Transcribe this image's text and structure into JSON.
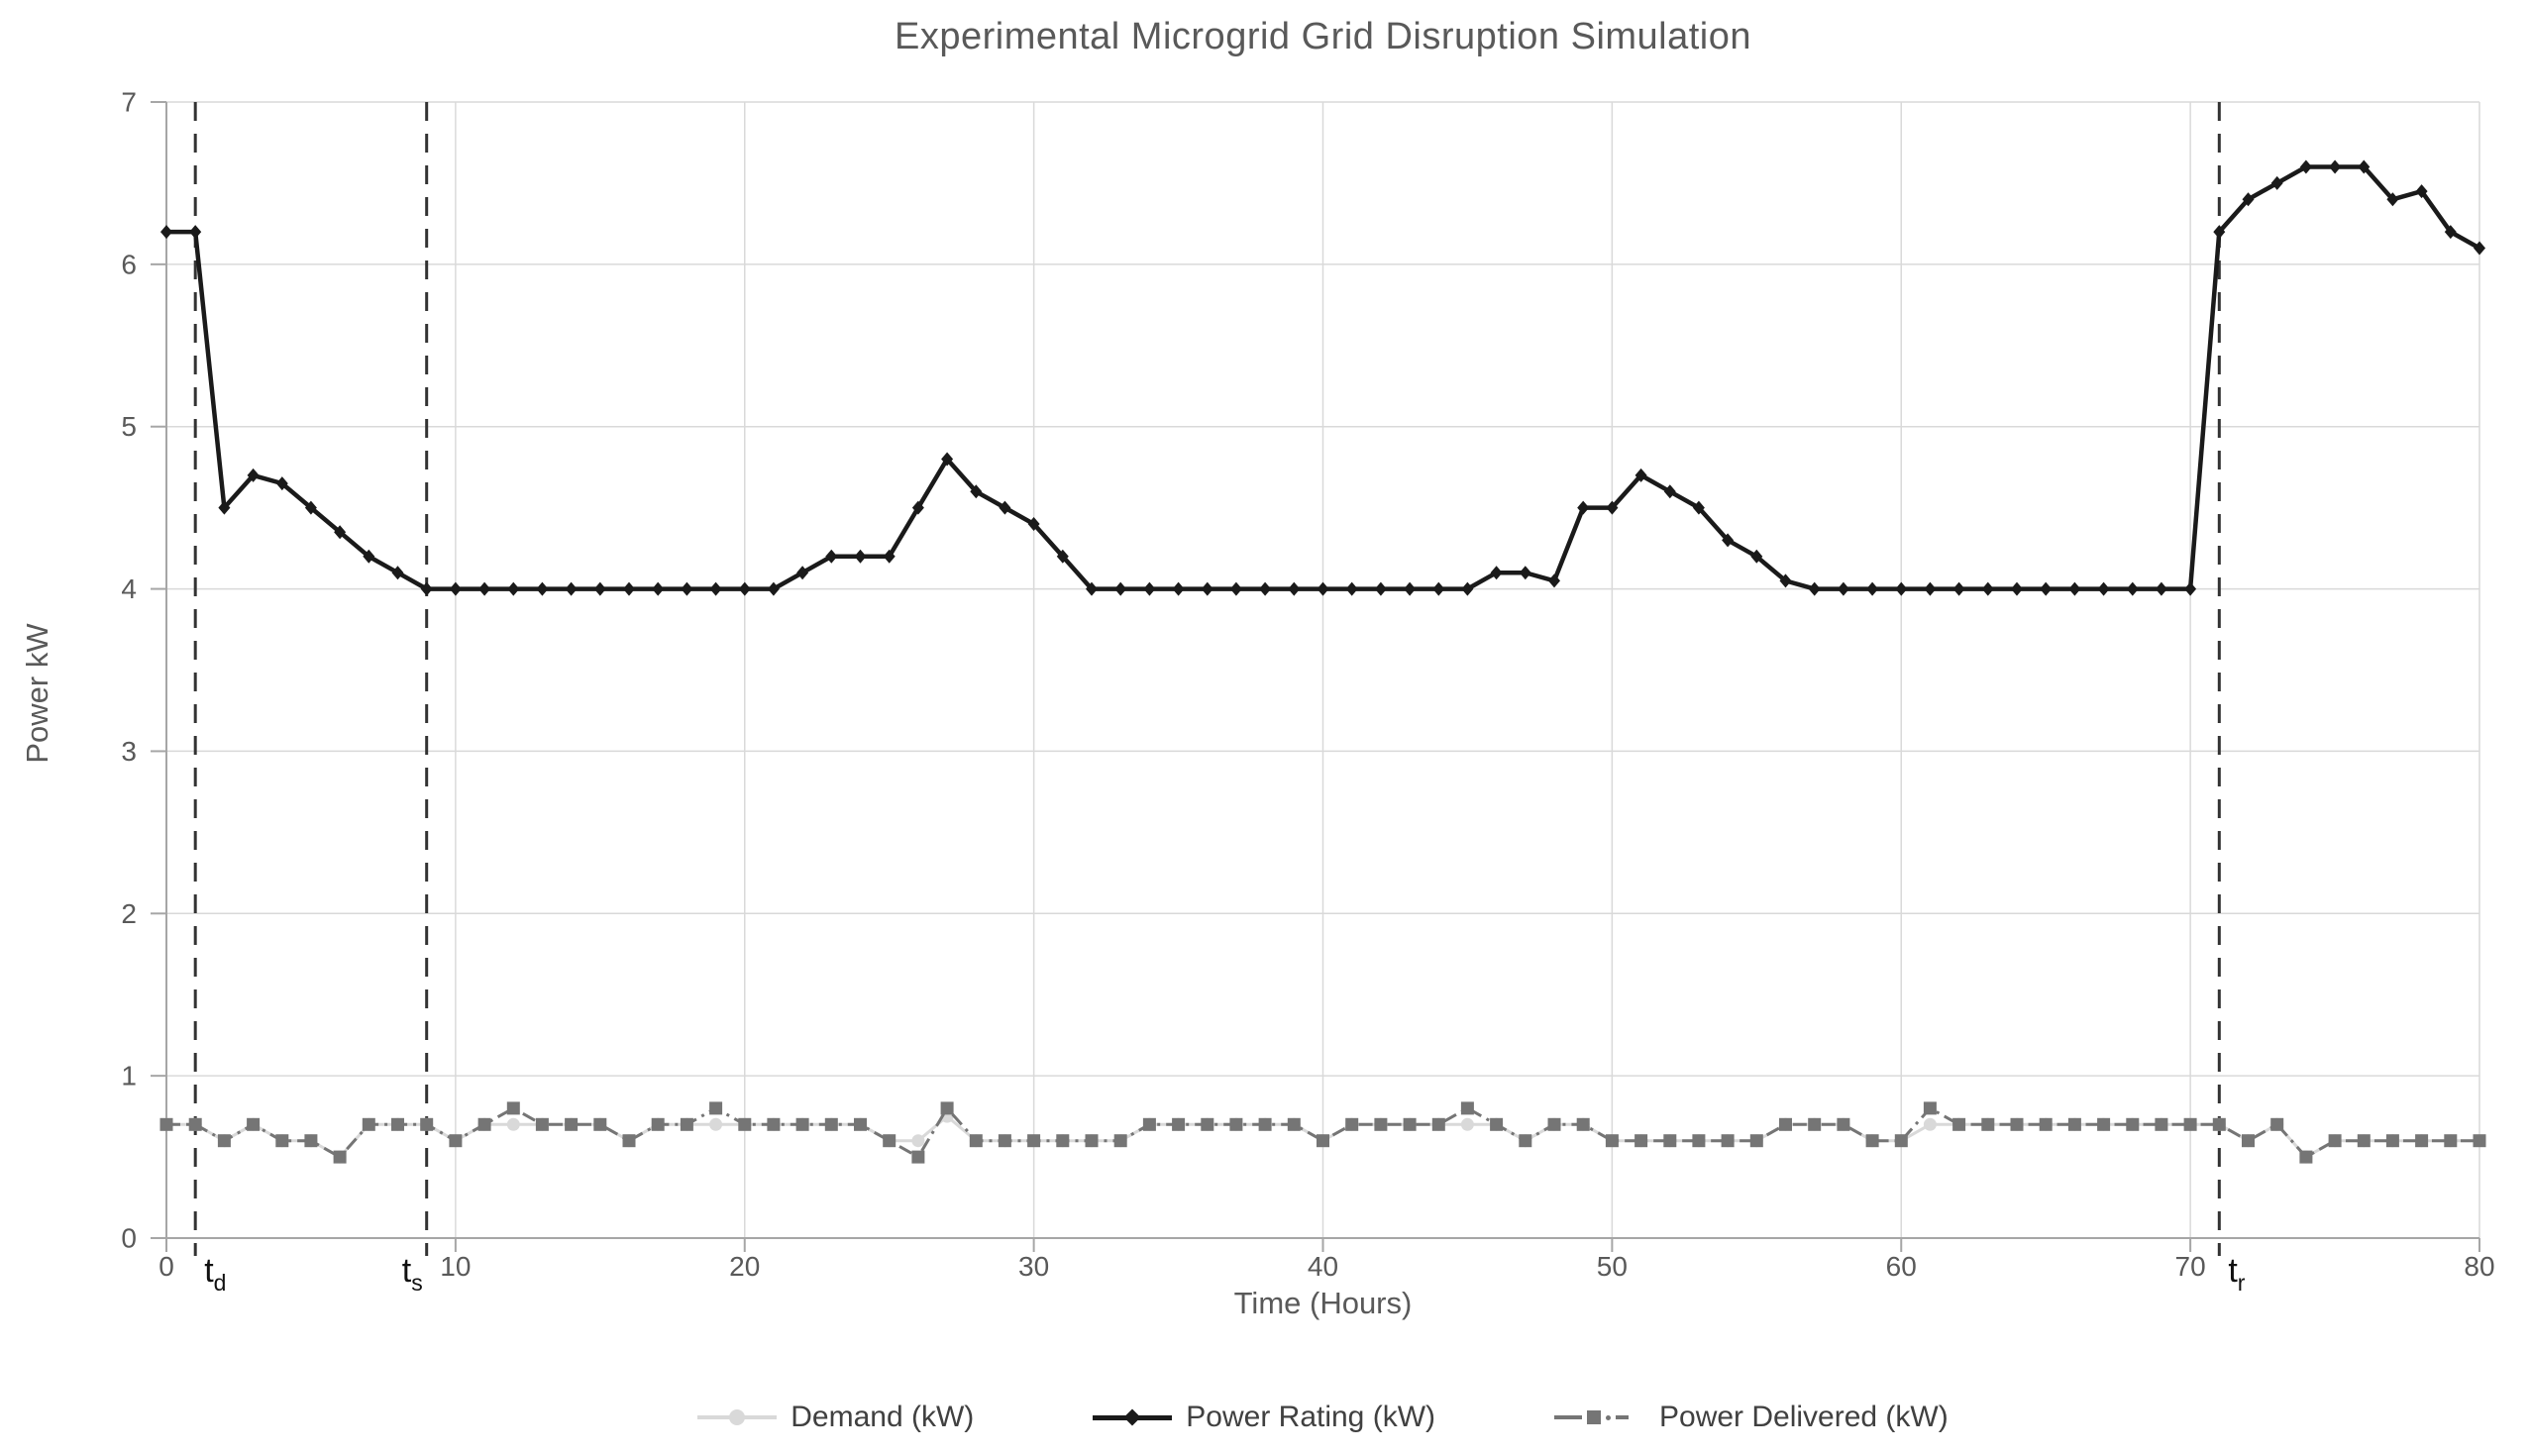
{
  "colors": {
    "grid": "#d9d9d9",
    "axis_line": "#a6a6a6",
    "tick_text": "#595959",
    "event_line": "#333333",
    "demand": "#d9d9d9",
    "rating": "#1a1a1a",
    "delivered": "#757575",
    "title_text": "#595959"
  },
  "chart_data": {
    "type": "line",
    "title": "Experimental Microgrid Grid Disruption Simulation",
    "xlabel": "Time (Hours)",
    "ylabel": "Power kW",
    "xlim": [
      0,
      80
    ],
    "ylim": [
      0,
      7
    ],
    "x_ticks": [
      0,
      10,
      20,
      30,
      40,
      50,
      60,
      70,
      80
    ],
    "y_ticks": [
      0,
      1,
      2,
      3,
      4,
      5,
      6,
      7
    ],
    "grid": true,
    "legend_position": "bottom",
    "event_lines": [
      {
        "label": "t",
        "subscript": "d",
        "x": 1
      },
      {
        "label": "t",
        "subscript": "s",
        "x": 9
      },
      {
        "label": "t",
        "subscript": "r",
        "x": 71
      }
    ],
    "x": [
      0,
      1,
      2,
      3,
      4,
      5,
      6,
      7,
      8,
      9,
      10,
      11,
      12,
      13,
      14,
      15,
      16,
      17,
      18,
      19,
      20,
      21,
      22,
      23,
      24,
      25,
      26,
      27,
      28,
      29,
      30,
      31,
      32,
      33,
      34,
      35,
      36,
      37,
      38,
      39,
      40,
      41,
      42,
      43,
      44,
      45,
      46,
      47,
      48,
      49,
      50,
      51,
      52,
      53,
      54,
      55,
      56,
      57,
      58,
      59,
      60,
      61,
      62,
      63,
      64,
      65,
      66,
      67,
      68,
      69,
      70,
      71,
      72,
      73,
      74,
      75,
      76,
      77,
      78,
      79,
      80
    ],
    "series": [
      {
        "name": "Demand (kW)",
        "marker": "circle",
        "color": "#d9d9d9",
        "line_style": "solid",
        "values": [
          0.7,
          0.7,
          0.6,
          0.7,
          0.6,
          0.6,
          0.5,
          0.7,
          0.7,
          0.7,
          0.6,
          0.7,
          0.7,
          0.7,
          0.7,
          0.7,
          0.6,
          0.7,
          0.7,
          0.7,
          0.7,
          0.7,
          0.7,
          0.7,
          0.7,
          0.6,
          0.6,
          0.75,
          0.6,
          0.6,
          0.6,
          0.6,
          0.6,
          0.6,
          0.7,
          0.7,
          0.7,
          0.7,
          0.7,
          0.7,
          0.6,
          0.7,
          0.7,
          0.7,
          0.7,
          0.7,
          0.7,
          0.6,
          0.7,
          0.7,
          0.6,
          0.6,
          0.6,
          0.6,
          0.6,
          0.6,
          0.7,
          0.7,
          0.7,
          0.6,
          0.6,
          0.7,
          0.7,
          0.7,
          0.7,
          0.7,
          0.7,
          0.7,
          0.7,
          0.7,
          0.7,
          0.7,
          0.6,
          0.7,
          0.5,
          0.6,
          0.6,
          0.6,
          0.6,
          0.6,
          0.6
        ]
      },
      {
        "name": "Power Rating (kW)",
        "marker": "diamond",
        "color": "#1a1a1a",
        "line_style": "solid",
        "values": [
          6.2,
          6.2,
          4.5,
          4.7,
          4.65,
          4.5,
          4.35,
          4.2,
          4.1,
          4.0,
          4.0,
          4.0,
          4.0,
          4.0,
          4.0,
          4.0,
          4.0,
          4.0,
          4.0,
          4.0,
          4.0,
          4.0,
          4.1,
          4.2,
          4.2,
          4.2,
          4.5,
          4.8,
          4.6,
          4.5,
          4.4,
          4.2,
          4.0,
          4.0,
          4.0,
          4.0,
          4.0,
          4.0,
          4.0,
          4.0,
          4.0,
          4.0,
          4.0,
          4.0,
          4.0,
          4.0,
          4.1,
          4.1,
          4.05,
          4.5,
          4.5,
          4.7,
          4.6,
          4.5,
          4.3,
          4.2,
          4.05,
          4.0,
          4.0,
          4.0,
          4.0,
          4.0,
          4.0,
          4.0,
          4.0,
          4.0,
          4.0,
          4.0,
          4.0,
          4.0,
          4.0,
          6.2,
          6.4,
          6.5,
          6.6,
          6.6,
          6.6,
          6.4,
          6.45,
          6.2,
          6.1
        ]
      },
      {
        "name": "Power Delivered (kW)",
        "marker": "square",
        "color": "#757575",
        "line_style": "dash-dot",
        "values": [
          0.7,
          0.7,
          0.6,
          0.7,
          0.6,
          0.6,
          0.5,
          0.7,
          0.7,
          0.7,
          0.6,
          0.7,
          0.8,
          0.7,
          0.7,
          0.7,
          0.6,
          0.7,
          0.7,
          0.8,
          0.7,
          0.7,
          0.7,
          0.7,
          0.7,
          0.6,
          0.5,
          0.8,
          0.6,
          0.6,
          0.6,
          0.6,
          0.6,
          0.6,
          0.7,
          0.7,
          0.7,
          0.7,
          0.7,
          0.7,
          0.6,
          0.7,
          0.7,
          0.7,
          0.7,
          0.8,
          0.7,
          0.6,
          0.7,
          0.7,
          0.6,
          0.6,
          0.6,
          0.6,
          0.6,
          0.6,
          0.7,
          0.7,
          0.7,
          0.6,
          0.6,
          0.8,
          0.7,
          0.7,
          0.7,
          0.7,
          0.7,
          0.7,
          0.7,
          0.7,
          0.7,
          0.7,
          0.6,
          0.7,
          0.5,
          0.6,
          0.6,
          0.6,
          0.6,
          0.6,
          0.6
        ]
      }
    ]
  }
}
